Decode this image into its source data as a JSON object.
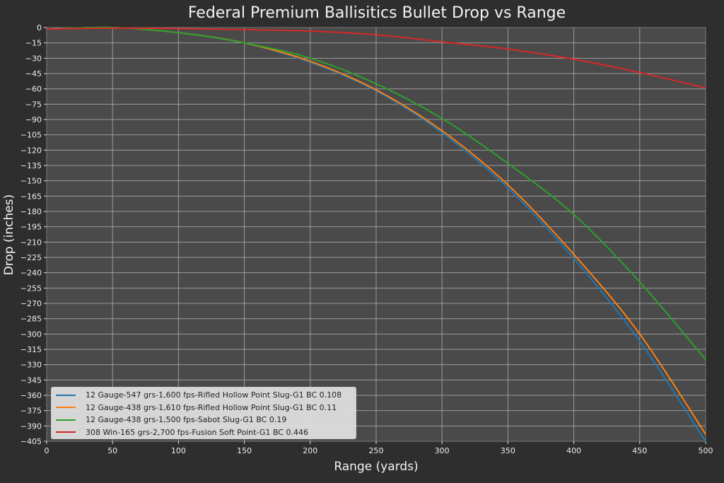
{
  "chart_data": {
    "type": "line",
    "title": "Federal Premium Ballisitics Bullet Drop vs Range",
    "xlabel": "Range (yards)",
    "ylabel": "Drop (inches)",
    "xlim": [
      0,
      500
    ],
    "ylim": [
      -405,
      0
    ],
    "grid": true,
    "legend_position": "lower left",
    "x_ticks": [
      0,
      50,
      100,
      150,
      200,
      250,
      300,
      350,
      400,
      450,
      500
    ],
    "y_ticks": [
      0,
      -15,
      -30,
      -45,
      -60,
      -75,
      -90,
      -105,
      -120,
      -135,
      -150,
      -165,
      -180,
      -195,
      -210,
      -225,
      -240,
      -255,
      -270,
      -285,
      -300,
      -315,
      -330,
      -345,
      -360,
      -375,
      -390,
      -405
    ],
    "x": [
      0,
      50,
      100,
      150,
      200,
      250,
      300,
      350,
      400,
      450,
      500
    ],
    "series": [
      {
        "name": "12 Gauge-547 grs-1,600 fps-Rifled Hollow Point Slug-G1 BC 0.108",
        "color": "#1f77b4",
        "values": [
          -1.5,
          0,
          -5,
          -15,
          -34,
          -62,
          -103,
          -157,
          -226,
          -307,
          -405
        ]
      },
      {
        "name": "12 Gauge-438 grs-1,610 fps-Rifled Hollow Point Slug-G1 BC 0.11",
        "color": "#ff7f0e",
        "values": [
          -1.5,
          0,
          -5,
          -15,
          -33,
          -61,
          -101,
          -154,
          -222,
          -300,
          -398
        ]
      },
      {
        "name": "12 Gauge-438 grs-1,500 fps-Sabot Slug-G1 BC 0.19",
        "color": "#2ca02c",
        "values": [
          -1.5,
          0,
          -5,
          -15,
          -30,
          -55,
          -89,
          -133,
          -183,
          -249,
          -325
        ]
      },
      {
        "name": "308 Win-165 grs-2,700 fps-Fusion Soft Point-G1 BC 0.446",
        "color": "#d62728",
        "values": [
          -1.5,
          -0.5,
          -1,
          -2,
          -3.5,
          -7,
          -14,
          -21,
          -31,
          -44,
          -59
        ]
      }
    ]
  },
  "colors": {
    "figure_bg": "#2e2e2e",
    "plot_bg": "#4a4a4a",
    "grid": "#b0b0b0"
  }
}
